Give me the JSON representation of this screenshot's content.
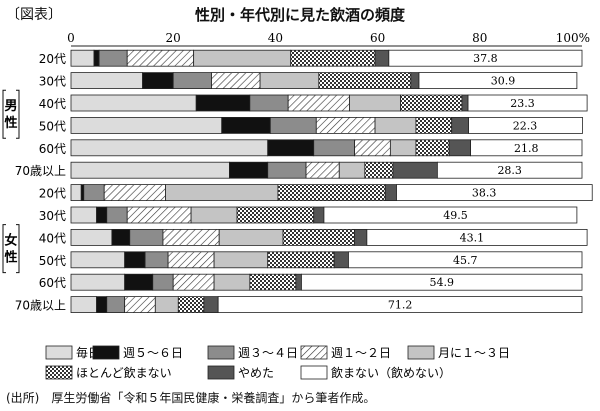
{
  "figure_label": "〔図表〕",
  "title": "性別・年代別に見た飲酒の頻度",
  "source": "(出所)　厚生労働省「令和５年国民健康・栄養調査」から筆者作成。",
  "chart_data": {
    "type": "bar",
    "orientation": "horizontal",
    "stacked": true,
    "xlim": [
      0,
      100
    ],
    "x_ticks": [
      "0",
      "20",
      "40",
      "60",
      "80",
      "100%"
    ],
    "groups": [
      {
        "label": "男性",
        "categories": [
          "20代",
          "30代",
          "40代",
          "50代",
          "60代",
          "70歳以上"
        ]
      },
      {
        "label": "女性",
        "categories": [
          "20代",
          "30代",
          "40代",
          "50代",
          "60代",
          "70歳以上"
        ]
      }
    ],
    "categories": [
      "20代",
      "30代",
      "40代",
      "50代",
      "60代",
      "70歳以上",
      "20代",
      "30代",
      "40代",
      "50代",
      "60代",
      "70歳以上"
    ],
    "series": [
      {
        "name": "毎日",
        "pattern": "light-gray",
        "values": [
          4.5,
          14.0,
          24.5,
          29.5,
          38.5,
          31.0,
          2.0,
          5.0,
          8.0,
          10.5,
          10.5,
          5.0
        ]
      },
      {
        "name": "週５～６日",
        "pattern": "black",
        "values": [
          1.0,
          6.0,
          10.5,
          9.5,
          9.0,
          7.5,
          0.5,
          2.0,
          3.5,
          4.0,
          5.5,
          2.0
        ]
      },
      {
        "name": "週３～４日",
        "pattern": "mid-gray",
        "values": [
          5.5,
          7.5,
          7.5,
          9.0,
          8.0,
          7.5,
          4.0,
          4.0,
          6.5,
          4.5,
          4.0,
          3.5
        ]
      },
      {
        "name": "週１～２日",
        "pattern": "diagonal-hatch",
        "values": [
          13.0,
          9.5,
          12.0,
          11.5,
          7.0,
          6.5,
          12.0,
          12.5,
          11.0,
          9.0,
          8.0,
          6.0
        ]
      },
      {
        "name": "月に１～３日",
        "pattern": "pale-gray",
        "values": [
          19.0,
          11.5,
          10.0,
          8.0,
          5.0,
          5.0,
          22.0,
          9.0,
          12.5,
          10.5,
          7.0,
          4.5
        ]
      },
      {
        "name": "ほとんど飲まない",
        "pattern": "checker",
        "values": [
          16.5,
          18.0,
          12.0,
          7.0,
          6.5,
          5.5,
          21.0,
          15.0,
          14.0,
          13.0,
          9.0,
          5.0
        ]
      },
      {
        "name": "やめた",
        "pattern": "dark-gray",
        "values": [
          2.7,
          1.6,
          1.2,
          3.3,
          4.2,
          8.7,
          2.2,
          2.0,
          2.4,
          2.8,
          1.1,
          2.8
        ]
      },
      {
        "name": "飲まない（飲めない）",
        "pattern": "white",
        "values": [
          37.8,
          30.9,
          23.3,
          22.3,
          21.8,
          28.3,
          38.3,
          49.5,
          43.1,
          45.7,
          54.9,
          71.2
        ]
      }
    ],
    "data_labels": [
      "37.8",
      "30.9",
      "23.3",
      "22.3",
      "21.8",
      "28.3",
      "38.3",
      "49.5",
      "43.1",
      "45.7",
      "54.9",
      "71.2"
    ],
    "legend": {
      "position": "bottom",
      "entries": [
        "毎日",
        "週５～６日",
        "週３～４日",
        "週１～２日",
        "月に１～３日",
        "ほとんど飲まない",
        "やめた",
        "飲まない（飲めない）"
      ]
    }
  }
}
